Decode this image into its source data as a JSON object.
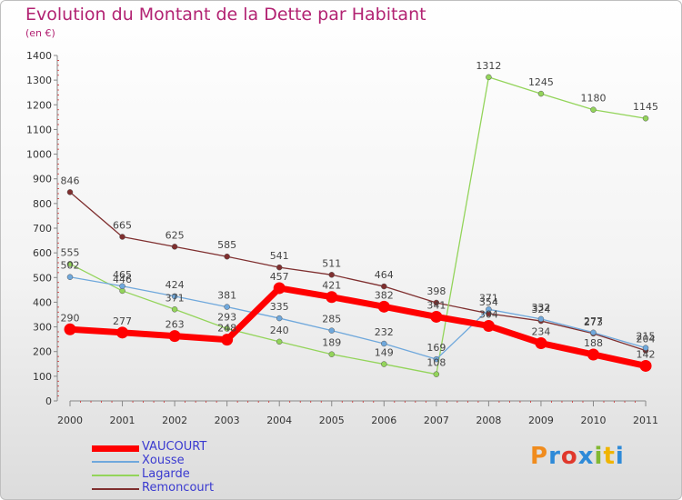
{
  "header": {
    "title": "Evolution du Montant de la Dette par Habitant",
    "subtitle": "(en €)"
  },
  "brand": {
    "letters": [
      "P",
      "r",
      "o",
      "x",
      "i",
      "t",
      "i"
    ],
    "colors": [
      "#f08c1e",
      "#2e8ad8",
      "#e0382c",
      "#2e8ad8",
      "#82b832",
      "#f0b400",
      "#2e8ad8"
    ]
  },
  "chart_data": {
    "type": "line",
    "title": "Evolution du Montant de la Dette par Habitant",
    "subtitle": "(en €)",
    "xlabel": "",
    "ylabel": "",
    "x": [
      "2000",
      "2001",
      "2002",
      "2003",
      "2004",
      "2005",
      "2006",
      "2007",
      "2008",
      "2009",
      "2010",
      "2011"
    ],
    "ylim": [
      0,
      1400
    ],
    "yticks": [
      0,
      100,
      200,
      300,
      400,
      500,
      600,
      700,
      800,
      900,
      1000,
      1100,
      1200,
      1300,
      1400
    ],
    "grid": false,
    "legend_position": "bottom-left",
    "series": [
      {
        "name": "VAUCOURT",
        "color": "#ff0000",
        "values": [
          290,
          277,
          263,
          248,
          457,
          421,
          382,
          341,
          304,
          234,
          188,
          142
        ]
      },
      {
        "name": "Xousse",
        "color": "#6fa8dc",
        "values": [
          502,
          465,
          424,
          381,
          335,
          285,
          232,
          169,
          371,
          332,
          277,
          215
        ]
      },
      {
        "name": "Lagarde",
        "color": "#93d45a",
        "values": [
          555,
          446,
          371,
          293,
          240,
          189,
          149,
          108,
          1312,
          1245,
          1180,
          1145
        ]
      },
      {
        "name": "Remoncourt",
        "color": "#7f2f2f",
        "values": [
          846,
          665,
          625,
          585,
          541,
          511,
          464,
          398,
          354,
          324,
          273,
          204
        ]
      }
    ]
  }
}
